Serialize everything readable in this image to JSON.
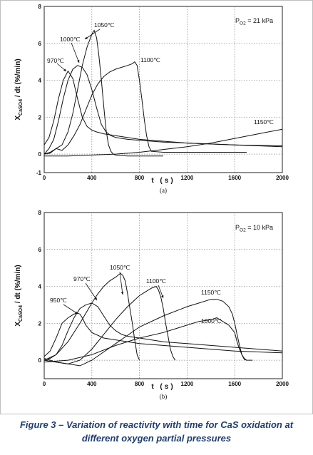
{
  "chart_data": [
    {
      "type": "line",
      "panel_label": "(a)",
      "annotation": "P",
      "annotation_sub": "O2",
      "annotation_rest": " = 21 kPa",
      "ylabel_main": "X",
      "ylabel_sub": "CaSO4",
      "ylabel_rest": " / dt (%/min)",
      "xlabel": "t (s)",
      "xlim": [
        0,
        2000
      ],
      "ylim": [
        -1,
        8
      ],
      "xticks": [
        "0",
        "400",
        "800",
        "1200",
        "1600",
        "2000"
      ],
      "yticks": [
        "-1",
        "0",
        "2",
        "4",
        "6",
        "8"
      ],
      "grid": "dotted",
      "series": [
        {
          "name": "970℃",
          "x": [
            0,
            40,
            80,
            120,
            160,
            200,
            240,
            280,
            320,
            360,
            400,
            440,
            500,
            600,
            800,
            1000,
            1200,
            1400,
            1600,
            1800,
            2000
          ],
          "y": [
            0.5,
            0.9,
            1.8,
            3.0,
            4.0,
            4.5,
            4.1,
            3.0,
            2.0,
            1.5,
            1.3,
            1.2,
            1.1,
            1.0,
            0.8,
            0.7,
            0.6,
            0.55,
            0.5,
            0.45,
            0.4
          ]
        },
        {
          "name": "1000℃",
          "x": [
            0,
            40,
            80,
            120,
            160,
            200,
            240,
            280,
            320,
            360,
            400,
            440,
            480,
            520,
            560,
            600,
            700,
            800,
            1000,
            1200,
            1600,
            2000
          ],
          "y": [
            0,
            0.3,
            0.8,
            1.8,
            3.0,
            4.0,
            4.6,
            4.8,
            4.7,
            4.3,
            3.5,
            2.5,
            1.6,
            1.2,
            1.0,
            0.9,
            0.8,
            0.75,
            0.65,
            0.6,
            0.5,
            0.45
          ]
        },
        {
          "name": "1050℃",
          "x": [
            0,
            50,
            100,
            150,
            200,
            240,
            280,
            320,
            360,
            400,
            420,
            440,
            460,
            480,
            500,
            520,
            540,
            560,
            580,
            600,
            700,
            800,
            900,
            1000
          ],
          "y": [
            0,
            0.1,
            0.3,
            0.5,
            1.2,
            2.2,
            3.5,
            4.8,
            5.8,
            6.5,
            6.7,
            6.3,
            5.3,
            4.0,
            2.6,
            1.3,
            0.5,
            0.15,
            0.0,
            -0.05,
            -0.1,
            -0.1,
            -0.1,
            -0.1
          ]
        },
        {
          "name": "1100℃",
          "x": [
            0,
            50,
            100,
            150,
            200,
            250,
            300,
            350,
            400,
            450,
            500,
            550,
            600,
            650,
            700,
            740,
            760,
            780,
            800,
            820,
            840,
            860,
            880,
            900,
            1000,
            1200,
            1400,
            1700
          ],
          "y": [
            0,
            0.05,
            0.3,
            0.2,
            0.5,
            1.0,
            1.6,
            2.4,
            3.2,
            3.8,
            4.2,
            4.45,
            4.6,
            4.7,
            4.8,
            4.9,
            5.0,
            4.8,
            4.0,
            3.0,
            1.9,
            1.0,
            0.4,
            0.15,
            0.1,
            0.1,
            0.1,
            0.1
          ]
        },
        {
          "name": "1150℃",
          "x": [
            0,
            200,
            400,
            600,
            800,
            1000,
            1200,
            1400,
            1600,
            1800,
            2000
          ],
          "y": [
            -0.1,
            -0.1,
            -0.05,
            0.0,
            0.1,
            0.25,
            0.4,
            0.6,
            0.85,
            1.1,
            1.35
          ]
        }
      ]
    },
    {
      "type": "line",
      "panel_label": "(b)",
      "annotation": "P",
      "annotation_sub": "O2",
      "annotation_rest": " = 10 kPa",
      "ylabel_main": "X",
      "ylabel_sub": "CaSO4",
      "ylabel_rest": " / dt (%/min)",
      "xlabel": "t (s)",
      "xlim": [
        0,
        2000
      ],
      "ylim": [
        -1,
        8
      ],
      "xticks": [
        "0",
        "400",
        "800",
        "1200",
        "1600",
        "2000"
      ],
      "yticks": [
        "0",
        "2",
        "4",
        "6",
        "8"
      ],
      "grid": "dotted",
      "series": [
        {
          "name": "950℃",
          "x": [
            0,
            50,
            100,
            150,
            200,
            250,
            280,
            300,
            320,
            350,
            400,
            500,
            600,
            800,
            1000,
            1200,
            1400,
            1600,
            1800,
            2000
          ],
          "y": [
            0.2,
            0.5,
            1.2,
            2.0,
            2.3,
            2.5,
            2.55,
            2.5,
            2.3,
            1.9,
            1.5,
            1.2,
            1.1,
            0.9,
            0.8,
            0.7,
            0.6,
            0.5,
            0.45,
            0.4
          ]
        },
        {
          "name": "970℃",
          "x": [
            0,
            50,
            100,
            150,
            200,
            250,
            300,
            350,
            400,
            450,
            500,
            550,
            600,
            650,
            700,
            800,
            1000,
            1200,
            1600,
            2000
          ],
          "y": [
            0,
            0.1,
            0.3,
            0.8,
            1.6,
            2.3,
            2.8,
            3.0,
            3.1,
            2.9,
            2.4,
            1.9,
            1.6,
            1.4,
            1.3,
            1.2,
            1.0,
            0.9,
            0.7,
            0.5
          ]
        },
        {
          "name": "1050℃",
          "x": [
            0,
            100,
            200,
            300,
            400,
            450,
            500,
            550,
            600,
            640,
            660,
            680,
            700,
            720,
            740,
            760,
            780,
            800
          ],
          "y": [
            0,
            0.3,
            1.0,
            2.0,
            3.1,
            3.6,
            4.0,
            4.3,
            4.5,
            4.7,
            4.6,
            4.3,
            3.6,
            2.8,
            2.0,
            1.1,
            0.3,
            0.0
          ]
        },
        {
          "name": "1100℃",
          "x": [
            0,
            100,
            200,
            300,
            400,
            500,
            600,
            700,
            800,
            850,
            900,
            940,
            960,
            980,
            1000,
            1020,
            1040,
            1060,
            1080,
            1100
          ],
          "y": [
            0,
            -0.1,
            -0.2,
            0.0,
            0.6,
            1.4,
            2.2,
            2.9,
            3.5,
            3.7,
            3.9,
            4.0,
            3.8,
            3.4,
            2.8,
            2.0,
            1.3,
            0.6,
            0.2,
            0.0
          ]
        },
        {
          "name": "1150℃",
          "x": [
            0,
            100,
            200,
            300,
            400,
            600,
            800,
            1000,
            1200,
            1300,
            1400,
            1450,
            1500,
            1550,
            1580,
            1600,
            1620,
            1640,
            1660,
            1680,
            1700
          ],
          "y": [
            0.1,
            -0.1,
            -0.2,
            -0.3,
            0.0,
            0.9,
            1.8,
            2.4,
            2.9,
            3.1,
            3.3,
            3.3,
            3.2,
            2.9,
            2.5,
            2.0,
            1.4,
            0.8,
            0.3,
            0.05,
            0.0
          ]
        },
        {
          "name": "1000℃",
          "x": [
            0,
            200,
            400,
            600,
            800,
            1000,
            1200,
            1300,
            1400,
            1450,
            1500,
            1550,
            1600,
            1620,
            1640,
            1660,
            1680,
            1700,
            1750
          ],
          "y": [
            -0.1,
            0.0,
            0.3,
            0.8,
            1.2,
            1.5,
            1.9,
            2.1,
            2.2,
            2.3,
            2.1,
            1.9,
            1.5,
            1.0,
            0.6,
            0.3,
            0.1,
            0.0,
            0.0
          ]
        }
      ]
    }
  ],
  "caption": {
    "line1": "Figure  3 – Variation of reactivity with time for CaS oxidation at",
    "line2": "different oxygen partial pressures"
  }
}
